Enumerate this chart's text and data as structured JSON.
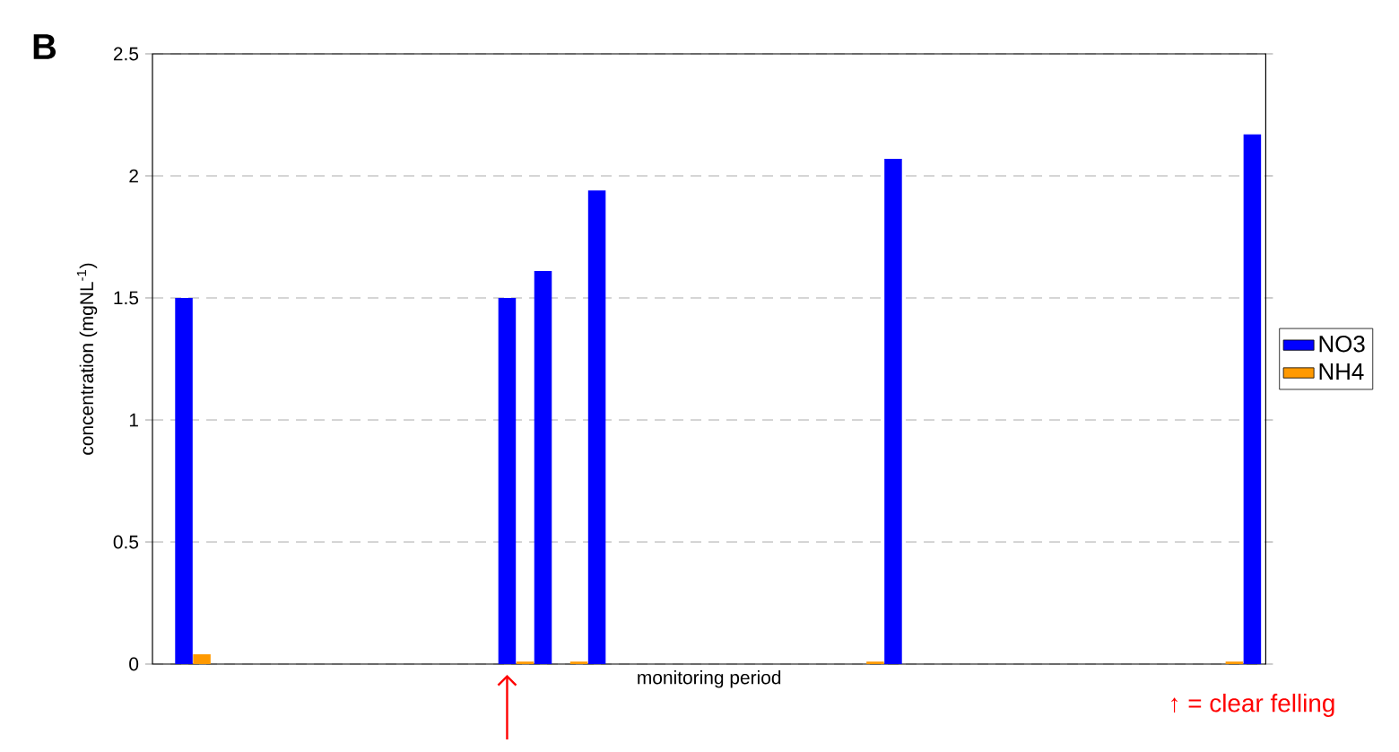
{
  "chart_data": {
    "type": "bar",
    "title": "B",
    "xlabel": "monitoring period",
    "ylabel": "concentration (mgNL$^{-1}$)",
    "annotations": [
      "↑ = clear felling"
    ],
    "categories": [
      null,
      null,
      null,
      null,
      null,
      null,
      null,
      null,
      null,
      null,
      null,
      null,
      null,
      null,
      null,
      null,
      null,
      null,
      null,
      null,
      null,
      null,
      null,
      null,
      null,
      null,
      null,
      null,
      null,
      null,
      null,
      null,
      null,
      null,
      null,
      null,
      null,
      null,
      null,
      null,
      null,
      null,
      null,
      null,
      null,
      null,
      null,
      null,
      null,
      null,
      null,
      null,
      null,
      null,
      null,
      null,
      null,
      null,
      null,
      null,
      null,
      null,
      null,
      null,
      null,
      null,
      null,
      null,
      null,
      null,
      null,
      null,
      null,
      null,
      null,
      null,
      null,
      null,
      null,
      null,
      null,
      null,
      null,
      null,
      null,
      null,
      null,
      null,
      null,
      null,
      null,
      null,
      null,
      null,
      null,
      null,
      null,
      null,
      null,
      null,
      null,
      null,
      null,
      null,
      null,
      null,
      null,
      null,
      null,
      null,
      null,
      null,
      null,
      null,
      null,
      null,
      null,
      null,
      null,
      null,
      null,
      null,
      null,
      null
    ],
    "series": [
      {
        "name": "NO3",
        "color": "#0000ff",
        "values": [
          null,
          null,
          null,
          1.5,
          null,
          null,
          null,
          null,
          null,
          null,
          null,
          null,
          null,
          null,
          null,
          null,
          null,
          null,
          null,
          null,
          null,
          null,
          null,
          null,
          null,
          null,
          null,
          null,
          null,
          null,
          null,
          null,
          null,
          null,
          null,
          null,
          null,
          null,
          null,
          1.5,
          null,
          null,
          null,
          1.61,
          null,
          null,
          null,
          null,
          null,
          1.94,
          null,
          null,
          null,
          null,
          null,
          null,
          null,
          null,
          null,
          null,
          null,
          null,
          null,
          null,
          null,
          null,
          null,
          null,
          null,
          null,
          null,
          null,
          null,
          null,
          null,
          null,
          null,
          null,
          null,
          null,
          null,
          null,
          2.07,
          null,
          null,
          null,
          null,
          null,
          null,
          null,
          null,
          null,
          null,
          null,
          null,
          null,
          null,
          null,
          null,
          null,
          null,
          null,
          null,
          null,
          null,
          null,
          null,
          null,
          null,
          null,
          null,
          null,
          null,
          null,
          null,
          null,
          null,
          null,
          null,
          null,
          null,
          null,
          2.17,
          null
        ]
      },
      {
        "name": "NH4",
        "color": "#ff9900",
        "values": [
          null,
          null,
          null,
          null,
          null,
          0.04,
          null,
          null,
          null,
          null,
          null,
          null,
          null,
          null,
          null,
          null,
          null,
          null,
          null,
          null,
          null,
          null,
          null,
          null,
          null,
          null,
          null,
          null,
          null,
          null,
          null,
          null,
          null,
          null,
          null,
          null,
          null,
          null,
          null,
          null,
          null,
          0.01,
          null,
          null,
          null,
          null,
          null,
          0.01,
          null,
          null,
          null,
          null,
          null,
          null,
          null,
          null,
          null,
          null,
          null,
          null,
          null,
          null,
          null,
          null,
          null,
          null,
          null,
          null,
          null,
          null,
          null,
          null,
          null,
          null,
          null,
          null,
          null,
          null,
          null,
          null,
          0.01,
          null,
          null,
          null,
          null,
          null,
          null,
          null,
          null,
          null,
          null,
          null,
          null,
          null,
          null,
          null,
          null,
          null,
          null,
          null,
          null,
          null,
          null,
          null,
          null,
          null,
          null,
          null,
          null,
          null,
          null,
          null,
          null,
          null,
          null,
          null,
          null,
          null,
          null,
          null,
          0.01,
          null,
          null,
          null
        ]
      }
    ],
    "ylim": [
      0,
      2.5
    ],
    "yticks": [
      0,
      0.5,
      1,
      1.5,
      2,
      2.5
    ],
    "grid": "y",
    "legend": "right"
  }
}
